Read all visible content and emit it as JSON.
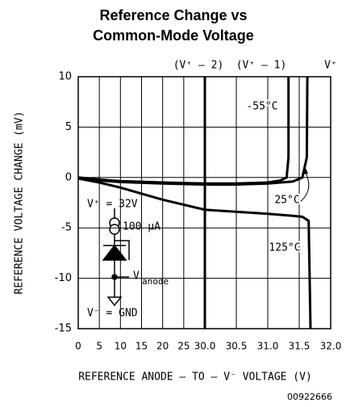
{
  "chart_data": {
    "type": "line",
    "title": "Reference Change vs",
    "subtitle": "Common-Mode Voltage",
    "x_label": "REFERENCE ANODE – TO – V⁻ VOLTAGE (V)",
    "y_label": "REFERENCE VOLTAGE CHANGE (mV)",
    "footnote": "00922666",
    "top_labels": [
      "(V⁺ – 2)",
      "(V⁺ – 1)",
      "V⁺"
    ],
    "circuit_labels": [
      "V⁺ = 32V",
      "100 µA",
      "V",
      "anode",
      "V⁻ = GND"
    ],
    "xlim": [
      0,
      32
    ],
    "ylim": [
      -15,
      10
    ],
    "xticks": [
      0,
      5,
      10,
      15,
      20,
      25,
      {
        "value": 30,
        "label": "30.0"
      },
      30.5,
      {
        "value": 31,
        "label": "31.0"
      },
      31.5,
      {
        "value": 32,
        "label": "32.0"
      }
    ],
    "yticks": [
      10,
      5,
      0,
      -5,
      -10,
      -15
    ],
    "grid": true,
    "series": [
      {
        "name": "-55°C",
        "color": "#000000",
        "x": [
          0,
          5,
          10,
          20,
          30,
          30.5,
          31,
          31.2,
          31.3,
          31.33,
          31.33
        ],
        "values": [
          0,
          -0.2,
          -0.35,
          -0.5,
          -0.6,
          -0.6,
          -0.5,
          -0.3,
          0,
          2,
          10
        ]
      },
      {
        "name": "25°C",
        "color": "#000000",
        "x": [
          0,
          5,
          10,
          20,
          30,
          30.5,
          31,
          31.4,
          31.55,
          31.62,
          31.63
        ],
        "values": [
          0,
          -0.3,
          -0.45,
          -0.6,
          -0.7,
          -0.7,
          -0.6,
          -0.4,
          0,
          2,
          10
        ]
      },
      {
        "name": "125°C",
        "color": "#000000",
        "x": [
          0,
          5,
          10,
          20,
          30,
          30.5,
          31,
          31.4,
          31.55,
          31.65,
          31.68
        ],
        "values": [
          -0.1,
          -0.5,
          -1,
          -2.2,
          -3.2,
          -3.4,
          -3.6,
          -3.8,
          -3.9,
          -4.3,
          -15
        ]
      }
    ]
  }
}
